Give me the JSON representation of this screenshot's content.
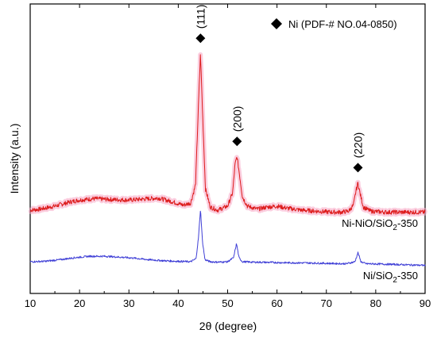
{
  "chart_data": {
    "type": "line",
    "title": "",
    "xlabel": "2θ (degree)",
    "ylabel": "Intensity (a.u.)",
    "xlim": [
      10,
      90
    ],
    "x_ticks": [
      "10",
      "20",
      "30",
      "40",
      "50",
      "60",
      "70",
      "80",
      "90"
    ],
    "y_ticks_visible": false,
    "grid": false,
    "legend": {
      "placement": "top-right",
      "marker": "diamond",
      "text": "Ni (PDF-# NO.04-0850)"
    },
    "series": [
      {
        "name_parts": [
          "Ni-NiO/SiO",
          "2",
          "-350"
        ],
        "color": "#dd1c1c",
        "shade_color": "#f7a6c4",
        "x": [
          10,
          12,
          15,
          18,
          20,
          23,
          26,
          30,
          33,
          36,
          39,
          41,
          42.5,
          43.5,
          44.1,
          44.5,
          44.9,
          45.5,
          46.5,
          48,
          50,
          51,
          51.5,
          51.9,
          52.3,
          53,
          54,
          56,
          58,
          60,
          62,
          65,
          68,
          71,
          73,
          74.5,
          75.5,
          76,
          76.4,
          76.8,
          77.5,
          79,
          82,
          85,
          88,
          90
        ],
        "y": [
          2.55,
          2.6,
          2.75,
          2.95,
          3.05,
          3.12,
          3.08,
          3.05,
          3.1,
          3.15,
          2.95,
          2.8,
          2.9,
          3.8,
          7.8,
          10.3,
          7.5,
          3.6,
          2.7,
          2.55,
          2.75,
          3.4,
          4.8,
          5.2,
          4.5,
          3.2,
          2.75,
          2.6,
          2.7,
          2.75,
          2.65,
          2.55,
          2.5,
          2.45,
          2.45,
          2.5,
          2.8,
          3.5,
          3.9,
          3.4,
          2.7,
          2.5,
          2.45,
          2.45,
          2.45,
          2.45
        ]
      },
      {
        "name_parts": [
          "Ni/SiO",
          "2",
          "-350"
        ],
        "color": "#3f3fd6",
        "x": [
          10,
          13,
          16,
          19,
          22,
          25,
          28,
          31,
          34,
          37,
          40,
          42.5,
          43.6,
          44.1,
          44.5,
          44.9,
          45.4,
          46.5,
          48,
          50,
          51.2,
          51.8,
          52.3,
          53,
          55,
          58,
          62,
          66,
          70,
          74,
          75.8,
          76.4,
          77,
          78,
          82,
          86,
          90
        ],
        "y": [
          0.0,
          0.02,
          0.1,
          0.2,
          0.27,
          0.27,
          0.23,
          0.18,
          0.1,
          0.05,
          0.02,
          0.0,
          0.15,
          1.2,
          2.6,
          1.0,
          0.1,
          0.0,
          -0.02,
          0.0,
          0.2,
          0.9,
          0.2,
          0.0,
          -0.02,
          -0.03,
          -0.05,
          -0.06,
          -0.08,
          -0.1,
          0.0,
          0.45,
          0.0,
          -0.1,
          -0.12,
          -0.15,
          -0.18
        ]
      }
    ],
    "annotations": [
      {
        "text": "(111)",
        "x": 44.5,
        "marker_y": 11.05
      },
      {
        "text": "(200)",
        "x": 51.9,
        "marker_y": 5.95
      },
      {
        "text": "(220)",
        "x": 76.4,
        "marker_y": 4.65
      }
    ]
  }
}
